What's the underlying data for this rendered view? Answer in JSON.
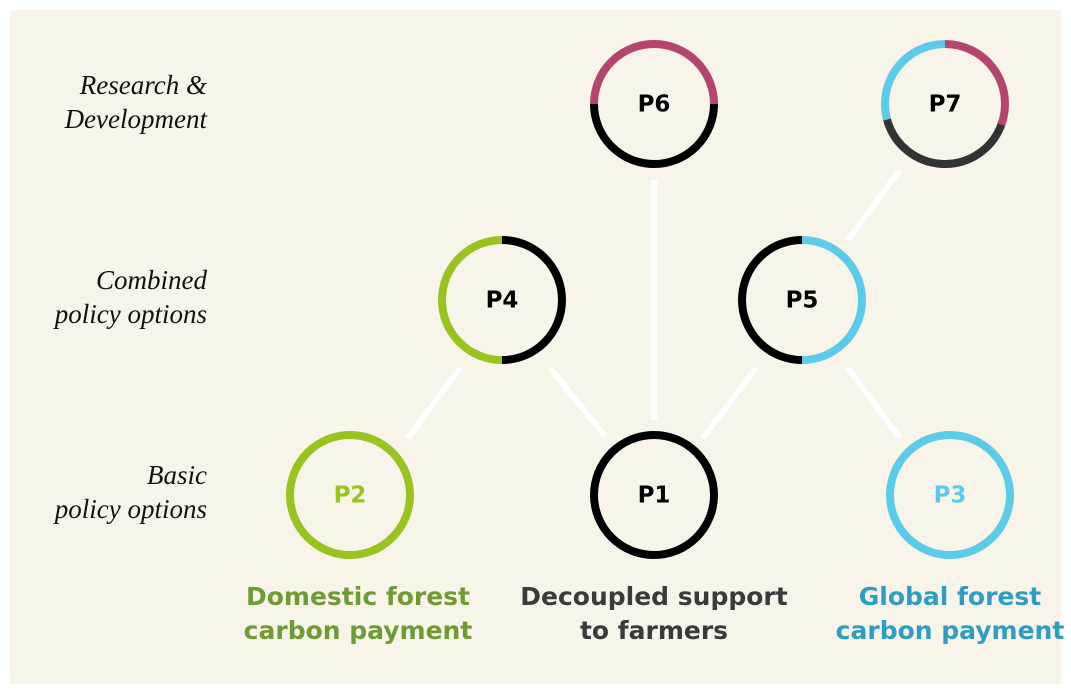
{
  "rows": [
    [
      "Research &",
      "Development"
    ],
    [
      "Combined",
      "policy options"
    ],
    [
      "Basic",
      "policy options"
    ]
  ],
  "nodes": [
    "P6",
    "P7",
    "P4",
    "P5",
    "P2",
    "P1",
    "P3"
  ],
  "captions": [
    [
      "Domestic forest",
      "carbon payment"
    ],
    [
      "Decoupled support",
      "to farmers"
    ],
    [
      "Global forest",
      "carbon payment"
    ]
  ]
}
